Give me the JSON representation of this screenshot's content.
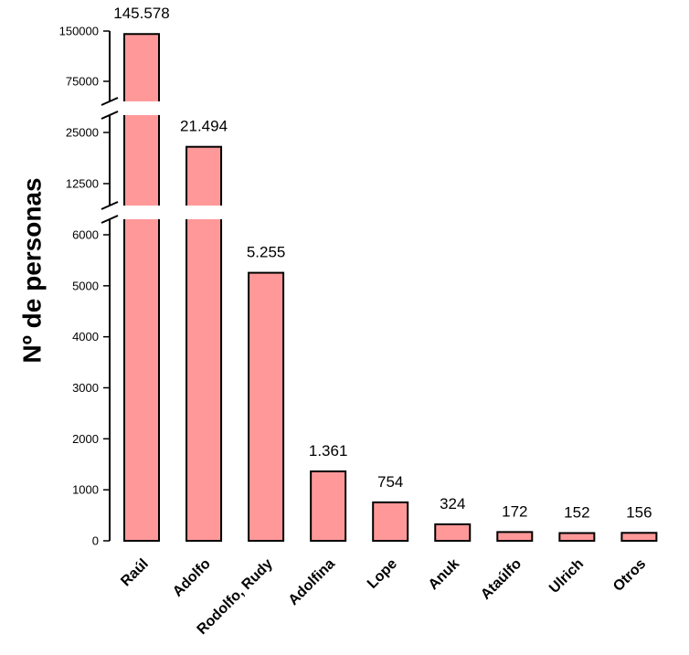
{
  "chart_data": {
    "type": "bar",
    "ylabel": "Nº de personas",
    "categories": [
      "Raúl",
      "Adolfo",
      "Rodolfo, Rudy",
      "Adolfina",
      "Lope",
      "Anuk",
      "Ataúlfo",
      "Ulrich",
      "Otros"
    ],
    "values": [
      145578,
      21494,
      5255,
      1361,
      754,
      324,
      172,
      152,
      156
    ],
    "data_labels": [
      "145.578",
      "21.494",
      "5.255",
      "1.361",
      "754",
      "324",
      "172",
      "152",
      "156"
    ],
    "y_scale": "broken",
    "y_segments": [
      [
        0,
        6000
      ],
      [
        12500,
        25000
      ],
      [
        75000,
        150000
      ]
    ],
    "y_ticks": [
      0,
      1000,
      2000,
      3000,
      4000,
      5000,
      6000,
      12500,
      25000,
      75000,
      150000
    ],
    "ylim": [
      0,
      150000
    ],
    "grid": false,
    "legend": "none",
    "colors": {
      "bar_fill": "#ff9999",
      "bar_outline": "#000000"
    }
  }
}
